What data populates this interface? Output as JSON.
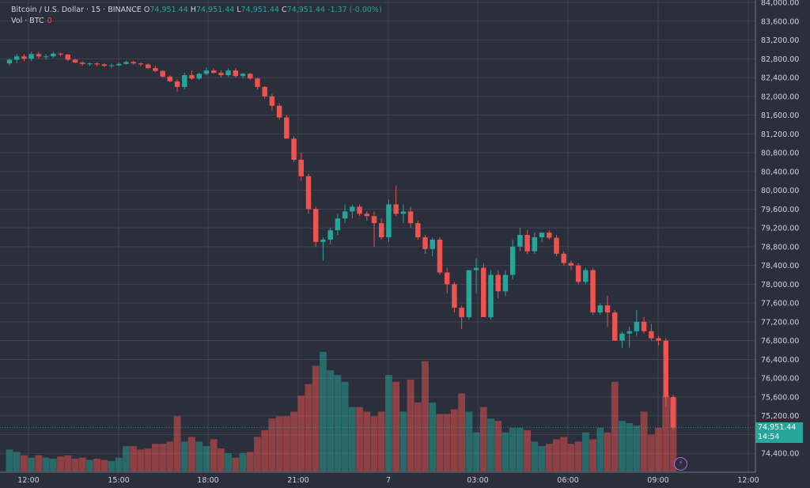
{
  "header": {
    "symbol": "Bitcoin / U.S. Dollar · 15 · BINANCE",
    "o_label": "O",
    "o_value": "74,951.44",
    "h_label": "H",
    "h_value": "74,951.44",
    "l_label": "L",
    "l_value": "74,951.44",
    "c_label": "C",
    "c_value": "74,951.44",
    "change": "-1.37 (-0.00%)",
    "vol_label": "Vol · BTC",
    "vol_value": "0"
  },
  "price_tag": {
    "price": "74,951.44",
    "countdown": "14:54"
  },
  "icons": {
    "bolt": "lightning-icon"
  },
  "colors": {
    "up": "#26a69a",
    "down": "#ef5350",
    "up_vol": "#26a69a",
    "down_vol": "#ef5350",
    "bg": "#2b2e3b",
    "grid": "#444a5a"
  },
  "chart_data": {
    "type": "candlestick",
    "ylim": [
      74000,
      84000
    ],
    "y_ticks": [
      "84,000.00",
      "83,600.00",
      "83,200.00",
      "82,800.00",
      "82,400.00",
      "82,000.00",
      "81,600.00",
      "81,200.00",
      "80,800.00",
      "80,400.00",
      "80,000.00",
      "79,600.00",
      "79,200.00",
      "78,800.00",
      "78,400.00",
      "78,000.00",
      "77,600.00",
      "77,200.00",
      "76,800.00",
      "76,400.00",
      "76,000.00",
      "75,600.00",
      "75,200.00",
      "74,800.00",
      "74,400.00"
    ],
    "x_ticks": [
      "12:00",
      "15:00",
      "18:00",
      "21:00",
      "7",
      "03:00",
      "06:00",
      "09:00",
      "12:00"
    ],
    "last_price": 74951.44,
    "candles": [
      {
        "o": 82700,
        "h": 82800,
        "l": 82650,
        "c": 82780,
        "v": 95
      },
      {
        "o": 82780,
        "h": 82900,
        "l": 82700,
        "c": 82850,
        "v": 85
      },
      {
        "o": 82850,
        "h": 82900,
        "l": 82750,
        "c": 82800,
        "v": 70
      },
      {
        "o": 82800,
        "h": 82950,
        "l": 82750,
        "c": 82900,
        "v": 60
      },
      {
        "o": 82900,
        "h": 82950,
        "l": 82800,
        "c": 82850,
        "v": 70
      },
      {
        "o": 82850,
        "h": 82900,
        "l": 82780,
        "c": 82850,
        "v": 60
      },
      {
        "o": 82850,
        "h": 82950,
        "l": 82820,
        "c": 82910,
        "v": 55
      },
      {
        "o": 82910,
        "h": 82930,
        "l": 82850,
        "c": 82890,
        "v": 65
      },
      {
        "o": 82890,
        "h": 82900,
        "l": 82750,
        "c": 82780,
        "v": 70
      },
      {
        "o": 82780,
        "h": 82800,
        "l": 82700,
        "c": 82720,
        "v": 55
      },
      {
        "o": 82720,
        "h": 82750,
        "l": 82650,
        "c": 82690,
        "v": 60
      },
      {
        "o": 82690,
        "h": 82720,
        "l": 82650,
        "c": 82700,
        "v": 50
      },
      {
        "o": 82700,
        "h": 82720,
        "l": 82640,
        "c": 82680,
        "v": 55
      },
      {
        "o": 82680,
        "h": 82700,
        "l": 82620,
        "c": 82650,
        "v": 50
      },
      {
        "o": 82650,
        "h": 82700,
        "l": 82600,
        "c": 82660,
        "v": 45
      },
      {
        "o": 82660,
        "h": 82720,
        "l": 82640,
        "c": 82690,
        "v": 60
      },
      {
        "o": 82690,
        "h": 82760,
        "l": 82680,
        "c": 82730,
        "v": 110
      },
      {
        "o": 82730,
        "h": 82760,
        "l": 82680,
        "c": 82700,
        "v": 110
      },
      {
        "o": 82700,
        "h": 82720,
        "l": 82640,
        "c": 82680,
        "v": 95
      },
      {
        "o": 82680,
        "h": 82700,
        "l": 82580,
        "c": 82600,
        "v": 100
      },
      {
        "o": 82600,
        "h": 82650,
        "l": 82520,
        "c": 82540,
        "v": 120
      },
      {
        "o": 82540,
        "h": 82560,
        "l": 82400,
        "c": 82420,
        "v": 120
      },
      {
        "o": 82420,
        "h": 82450,
        "l": 82300,
        "c": 82320,
        "v": 130
      },
      {
        "o": 82320,
        "h": 82360,
        "l": 82100,
        "c": 82200,
        "v": 240
      },
      {
        "o": 82200,
        "h": 82500,
        "l": 82150,
        "c": 82450,
        "v": 130
      },
      {
        "o": 82450,
        "h": 82550,
        "l": 82350,
        "c": 82380,
        "v": 150
      },
      {
        "o": 82380,
        "h": 82500,
        "l": 82350,
        "c": 82480,
        "v": 130
      },
      {
        "o": 82480,
        "h": 82620,
        "l": 82450,
        "c": 82550,
        "v": 110
      },
      {
        "o": 82550,
        "h": 82600,
        "l": 82480,
        "c": 82500,
        "v": 140
      },
      {
        "o": 82500,
        "h": 82550,
        "l": 82400,
        "c": 82450,
        "v": 100
      },
      {
        "o": 82450,
        "h": 82600,
        "l": 82420,
        "c": 82550,
        "v": 80
      },
      {
        "o": 82550,
        "h": 82600,
        "l": 82400,
        "c": 82430,
        "v": 60
      },
      {
        "o": 82430,
        "h": 82500,
        "l": 82380,
        "c": 82480,
        "v": 80
      },
      {
        "o": 82480,
        "h": 82500,
        "l": 82350,
        "c": 82380,
        "v": 85
      },
      {
        "o": 82380,
        "h": 82400,
        "l": 82150,
        "c": 82200,
        "v": 150
      },
      {
        "o": 82200,
        "h": 82220,
        "l": 81950,
        "c": 82000,
        "v": 180
      },
      {
        "o": 82000,
        "h": 82050,
        "l": 81700,
        "c": 81800,
        "v": 230
      },
      {
        "o": 81800,
        "h": 81850,
        "l": 81500,
        "c": 81550,
        "v": 240
      },
      {
        "o": 81550,
        "h": 81600,
        "l": 81150,
        "c": 81100,
        "v": 240
      },
      {
        "o": 81100,
        "h": 81150,
        "l": 80600,
        "c": 80650,
        "v": 260
      },
      {
        "o": 80650,
        "h": 80800,
        "l": 80200,
        "c": 80300,
        "v": 330
      },
      {
        "o": 80300,
        "h": 80350,
        "l": 79500,
        "c": 79600,
        "v": 380
      },
      {
        "o": 79600,
        "h": 79650,
        "l": 78800,
        "c": 78900,
        "v": 460
      },
      {
        "o": 78900,
        "h": 79000,
        "l": 78500,
        "c": 78950,
        "v": 520
      },
      {
        "o": 78950,
        "h": 79200,
        "l": 78850,
        "c": 79150,
        "v": 440
      },
      {
        "o": 79150,
        "h": 79500,
        "l": 79050,
        "c": 79400,
        "v": 420
      },
      {
        "o": 79400,
        "h": 79700,
        "l": 79300,
        "c": 79550,
        "v": 390
      },
      {
        "o": 79550,
        "h": 79700,
        "l": 79400,
        "c": 79650,
        "v": 280
      },
      {
        "o": 79650,
        "h": 79700,
        "l": 79450,
        "c": 79500,
        "v": 280
      },
      {
        "o": 79500,
        "h": 79550,
        "l": 79350,
        "c": 79450,
        "v": 260
      },
      {
        "o": 79450,
        "h": 79550,
        "l": 78800,
        "c": 79300,
        "v": 240
      },
      {
        "o": 79300,
        "h": 79400,
        "l": 78950,
        "c": 79000,
        "v": 260
      },
      {
        "o": 79000,
        "h": 79800,
        "l": 78900,
        "c": 79700,
        "v": 420
      },
      {
        "o": 79700,
        "h": 80100,
        "l": 79450,
        "c": 79500,
        "v": 390
      },
      {
        "o": 79500,
        "h": 79700,
        "l": 79300,
        "c": 79550,
        "v": 260
      },
      {
        "o": 79550,
        "h": 79650,
        "l": 79200,
        "c": 79300,
        "v": 400
      },
      {
        "o": 79300,
        "h": 79350,
        "l": 78950,
        "c": 79000,
        "v": 300
      },
      {
        "o": 79000,
        "h": 79050,
        "l": 78650,
        "c": 78750,
        "v": 480
      },
      {
        "o": 78750,
        "h": 79000,
        "l": 78600,
        "c": 78950,
        "v": 300
      },
      {
        "o": 78950,
        "h": 79000,
        "l": 78200,
        "c": 78250,
        "v": 250
      },
      {
        "o": 78250,
        "h": 78350,
        "l": 77800,
        "c": 78000,
        "v": 250
      },
      {
        "o": 78000,
        "h": 78050,
        "l": 77400,
        "c": 77500,
        "v": 270
      },
      {
        "o": 77500,
        "h": 77550,
        "l": 77050,
        "c": 77300,
        "v": 340
      },
      {
        "o": 77300,
        "h": 78300,
        "l": 77250,
        "c": 78300,
        "v": 260
      },
      {
        "o": 78300,
        "h": 78550,
        "l": 77800,
        "c": 78350,
        "v": 170
      },
      {
        "o": 78350,
        "h": 78450,
        "l": 77300,
        "c": 77300,
        "v": 280
      },
      {
        "o": 77300,
        "h": 78300,
        "l": 77250,
        "c": 78200,
        "v": 230
      },
      {
        "o": 78200,
        "h": 78300,
        "l": 77700,
        "c": 77850,
        "v": 220
      },
      {
        "o": 77850,
        "h": 78300,
        "l": 77750,
        "c": 78200,
        "v": 170
      },
      {
        "o": 78200,
        "h": 78950,
        "l": 78100,
        "c": 78800,
        "v": 190
      },
      {
        "o": 78800,
        "h": 79200,
        "l": 78700,
        "c": 79050,
        "v": 190
      },
      {
        "o": 79050,
        "h": 79150,
        "l": 78650,
        "c": 78700,
        "v": 180
      },
      {
        "o": 78700,
        "h": 79100,
        "l": 78650,
        "c": 79000,
        "v": 130
      },
      {
        "o": 79000,
        "h": 79100,
        "l": 78900,
        "c": 79100,
        "v": 110
      },
      {
        "o": 79100,
        "h": 79150,
        "l": 78950,
        "c": 78990,
        "v": 120
      },
      {
        "o": 78990,
        "h": 79050,
        "l": 78600,
        "c": 78650,
        "v": 140
      },
      {
        "o": 78650,
        "h": 78700,
        "l": 78400,
        "c": 78450,
        "v": 150
      },
      {
        "o": 78450,
        "h": 78500,
        "l": 78300,
        "c": 78400,
        "v": 120
      },
      {
        "o": 78400,
        "h": 78450,
        "l": 78000,
        "c": 78050,
        "v": 130
      },
      {
        "o": 78050,
        "h": 78350,
        "l": 78000,
        "c": 78300,
        "v": 170
      },
      {
        "o": 78300,
        "h": 78350,
        "l": 77350,
        "c": 77400,
        "v": 140
      },
      {
        "o": 77400,
        "h": 77600,
        "l": 77350,
        "c": 77550,
        "v": 190
      },
      {
        "o": 77550,
        "h": 77750,
        "l": 77100,
        "c": 77400,
        "v": 170
      },
      {
        "o": 77400,
        "h": 77450,
        "l": 76800,
        "c": 76800,
        "v": 390
      },
      {
        "o": 76800,
        "h": 77000,
        "l": 76650,
        "c": 76950,
        "v": 220
      },
      {
        "o": 76950,
        "h": 77100,
        "l": 76650,
        "c": 77000,
        "v": 210
      },
      {
        "o": 77000,
        "h": 77450,
        "l": 76900,
        "c": 77200,
        "v": 200
      },
      {
        "o": 77200,
        "h": 77300,
        "l": 76950,
        "c": 77000,
        "v": 260
      },
      {
        "o": 77000,
        "h": 77150,
        "l": 76800,
        "c": 76850,
        "v": 160
      },
      {
        "o": 76850,
        "h": 76900,
        "l": 76700,
        "c": 76800,
        "v": 190
      },
      {
        "o": 76800,
        "h": 76850,
        "l": 75400,
        "c": 75600,
        "v": 330
      },
      {
        "o": 75600,
        "h": 75650,
        "l": 74900,
        "c": 74951.44,
        "v": 320
      }
    ]
  }
}
